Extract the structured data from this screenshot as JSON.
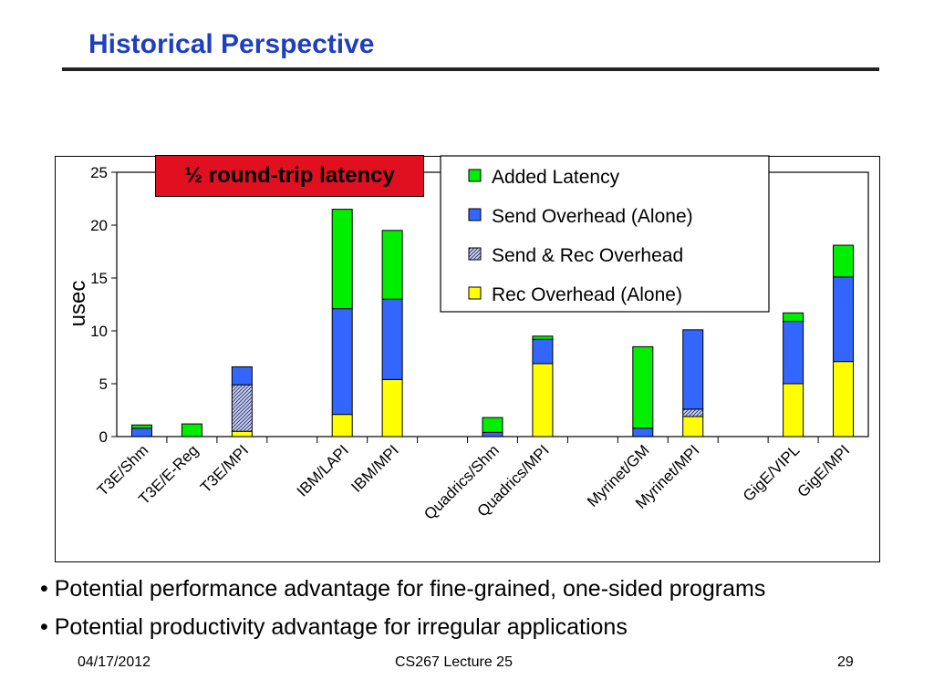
{
  "slide": {
    "title": "Historical Perspective",
    "callout": "½ round-trip latency",
    "bullets": [
      "• Potential performance advantage for fine-grained, one-sided programs",
      "• Potential productivity advantage for irregular applications"
    ],
    "footer": {
      "date": "04/17/2012",
      "course": "CS267 Lecture 25",
      "page": "29"
    }
  },
  "chart_data": {
    "type": "bar",
    "stacked": true,
    "ylabel": "usec",
    "xlabel": "",
    "ylim": [
      0,
      25
    ],
    "yticks": [
      0,
      5,
      10,
      15,
      20,
      25
    ],
    "grid": false,
    "legend_position": "top-right",
    "categories": [
      "T3E/Shm",
      "T3E/E-Reg",
      "T3E/MPI",
      "IBM/LAPI",
      "IBM/MPI",
      "Quadrics/Shm",
      "Quadrics/MPI",
      "Myrinet/GM",
      "Myrinet/MPI",
      "GigE/VIPL",
      "GigE/MPI"
    ],
    "groups": [
      [
        0,
        1,
        2
      ],
      [
        3,
        4
      ],
      [
        5,
        6
      ],
      [
        7,
        8
      ],
      [
        9,
        10
      ]
    ],
    "series": [
      {
        "name": "Rec Overhead (Alone)",
        "color": "#ffff00",
        "pattern": false,
        "values": [
          0,
          0,
          0.5,
          2.1,
          5.4,
          0,
          6.9,
          0,
          1.9,
          5.0,
          7.1
        ]
      },
      {
        "name": "Send & Rec Overhead",
        "color": "#b8c8ff",
        "pattern": true,
        "values": [
          0,
          0,
          4.4,
          0,
          0,
          0,
          0,
          0,
          0.7,
          0,
          0
        ]
      },
      {
        "name": "Send Overhead (Alone)",
        "color": "#3366ff",
        "pattern": false,
        "values": [
          0.8,
          0,
          1.7,
          10.0,
          7.6,
          0.4,
          2.3,
          0.8,
          7.5,
          5.9,
          8.0
        ]
      },
      {
        "name": "Added Latency",
        "color": "#00ee00",
        "pattern": false,
        "values": [
          0.3,
          1.2,
          0,
          9.4,
          6.5,
          1.4,
          0.3,
          7.7,
          0,
          0.8,
          3.0
        ]
      }
    ],
    "legend_order": [
      "Added Latency",
      "Send Overhead (Alone)",
      "Send & Rec Overhead",
      "Rec Overhead (Alone)"
    ]
  }
}
